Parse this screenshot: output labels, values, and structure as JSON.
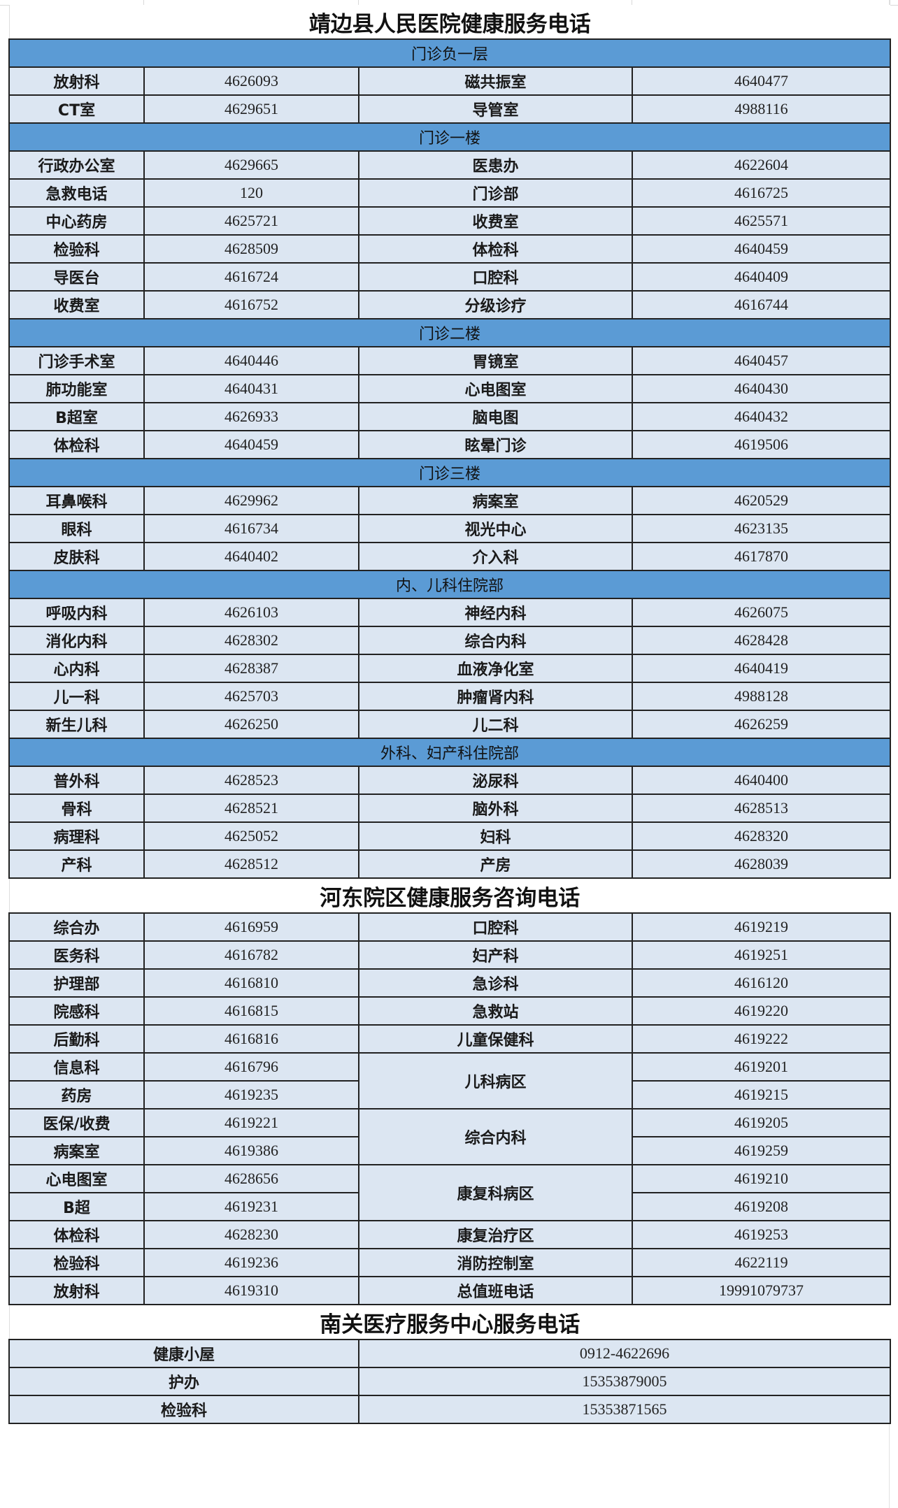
{
  "main_title": "靖边县人民医院健康服务电话",
  "sections": [
    {
      "header": "门诊负一层",
      "rows": [
        [
          "放射科",
          "4626093",
          "磁共振室",
          "4640477"
        ],
        [
          "CT室",
          "4629651",
          "导管室",
          "4988116"
        ]
      ]
    },
    {
      "header": "门诊一楼",
      "rows": [
        [
          "行政办公室",
          "4629665",
          "医患办",
          "4622604"
        ],
        [
          "急救电话",
          "120",
          "门诊部",
          "4616725"
        ],
        [
          "中心药房",
          "4625721",
          "收费室",
          "4625571"
        ],
        [
          "检验科",
          "4628509",
          "体检科",
          "4640459"
        ],
        [
          "导医台",
          "4616724",
          "口腔科",
          "4640409"
        ],
        [
          "收费室",
          "4616752",
          "分级诊疗",
          "4616744"
        ]
      ]
    },
    {
      "header": "门诊二楼",
      "rows": [
        [
          "门诊手术室",
          "4640446",
          "胃镜室",
          "4640457"
        ],
        [
          "肺功能室",
          "4640431",
          "心电图室",
          "4640430"
        ],
        [
          "B超室",
          "4626933",
          "脑电图",
          "4640432"
        ],
        [
          "体检科",
          "4640459",
          "眩晕门诊",
          "4619506"
        ]
      ]
    },
    {
      "header": "门诊三楼",
      "rows": [
        [
          "耳鼻喉科",
          "4629962",
          "病案室",
          "4620529"
        ],
        [
          "眼科",
          "4616734",
          "视光中心",
          "4623135"
        ],
        [
          "皮肤科",
          "4640402",
          "介入科",
          "4617870"
        ]
      ]
    },
    {
      "header": "内、儿科住院部",
      "rows": [
        [
          "呼吸内科",
          "4626103",
          "神经内科",
          "4626075"
        ],
        [
          "消化内科",
          "4628302",
          "综合内科",
          "4628428"
        ],
        [
          "心内科",
          "4628387",
          "血液净化室",
          "4640419"
        ],
        [
          "儿一科",
          "4625703",
          "肿瘤肾内科",
          "4988128"
        ],
        [
          "新生儿科",
          "4626250",
          "儿二科",
          "4626259"
        ]
      ]
    },
    {
      "header": "外科、妇产科住院部",
      "rows": [
        [
          "普外科",
          "4628523",
          "泌尿科",
          "4640400"
        ],
        [
          "骨科",
          "4628521",
          "脑外科",
          "4628513"
        ],
        [
          "病理科",
          "4625052",
          "妇科",
          "4628320"
        ],
        [
          "产科",
          "4628512",
          "产房",
          "4628039"
        ]
      ]
    }
  ],
  "hedong": {
    "title": "河东院区健康服务咨询电话",
    "left": [
      [
        "综合办",
        "4616959"
      ],
      [
        "医务科",
        "4616782"
      ],
      [
        "护理部",
        "4616810"
      ],
      [
        "院感科",
        "4616815"
      ],
      [
        "后勤科",
        "4616816"
      ],
      [
        "信息科",
        "4616796"
      ],
      [
        "药房",
        "4619235"
      ],
      [
        "医保/收费",
        "4619221"
      ],
      [
        "病案室",
        "4619386"
      ],
      [
        "心电图室",
        "4628656"
      ],
      [
        "B超",
        "4619231"
      ],
      [
        "体检科",
        "4628230"
      ],
      [
        "检验科",
        "4619236"
      ],
      [
        "放射科",
        "4619310"
      ]
    ],
    "right": [
      {
        "name": "口腔科",
        "phones": [
          "4619219"
        ]
      },
      {
        "name": "妇产科",
        "phones": [
          "4619251"
        ]
      },
      {
        "name": "急诊科",
        "phones": [
          "4616120"
        ]
      },
      {
        "name": "急救站",
        "phones": [
          "4619220"
        ]
      },
      {
        "name": "儿童保健科",
        "phones": [
          "4619222"
        ]
      },
      {
        "name": "儿科病区",
        "phones": [
          "4619201",
          "4619215"
        ]
      },
      {
        "name": "综合内科",
        "phones": [
          "4619205",
          "4619259"
        ]
      },
      {
        "name": "康复科病区",
        "phones": [
          "4619210",
          "4619208"
        ]
      },
      {
        "name": "康复治疗区",
        "phones": [
          "4619253"
        ]
      },
      {
        "name": "消防控制室",
        "phones": [
          "4622119"
        ]
      },
      {
        "name": "总值班电话",
        "phones": [
          "19991079737"
        ]
      }
    ]
  },
  "nanguan": {
    "title": "南关医疗服务中心服务电话",
    "rows": [
      [
        "健康小屋",
        "0912-4622696"
      ],
      [
        "护办",
        "15353879005"
      ],
      [
        "检验科",
        "15353871565"
      ]
    ]
  },
  "colors": {
    "section_header": "#5b9bd5",
    "cell": "#dce6f2",
    "border": "#222222"
  }
}
